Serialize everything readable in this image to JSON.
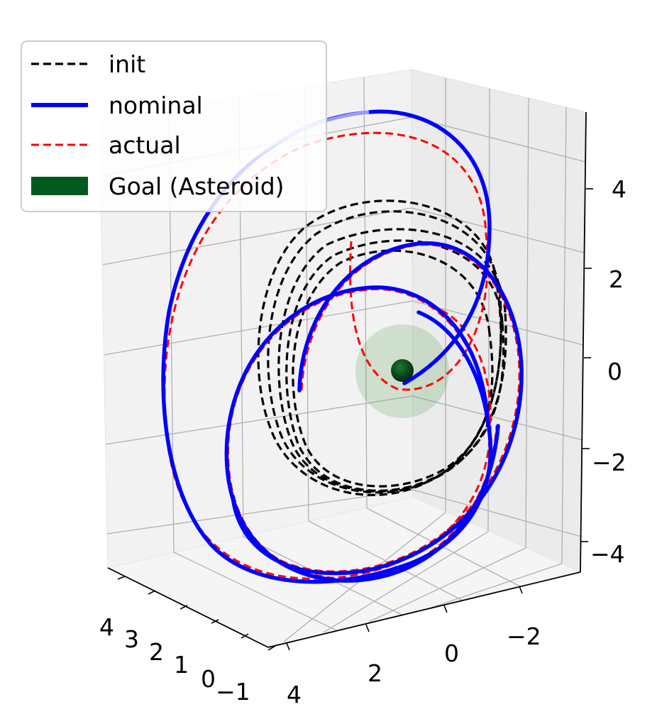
{
  "chart_data": {
    "type": "line",
    "projection": "3d",
    "title": "",
    "xlabel": "",
    "ylabel": "",
    "zlabel": "",
    "grid": true,
    "legend_position": "top-left",
    "axes": {
      "z_ticks": [
        "4",
        "2",
        "0",
        "−2",
        "−4"
      ],
      "left_ticks": [
        "4",
        "3",
        "2",
        "1",
        "0",
        "−1"
      ],
      "right_ticks": [
        "4",
        "2",
        "0",
        "−2"
      ]
    },
    "series": [
      {
        "name": "init",
        "style": "dashed",
        "color": "#000000"
      },
      {
        "name": "nominal",
        "style": "solid",
        "color": "#0000ff"
      },
      {
        "name": "actual",
        "style": "dashed",
        "color": "#ff0000"
      },
      {
        "name": "Goal (Asteroid)",
        "style": "sphere",
        "color": "#005a1e"
      }
    ]
  }
}
